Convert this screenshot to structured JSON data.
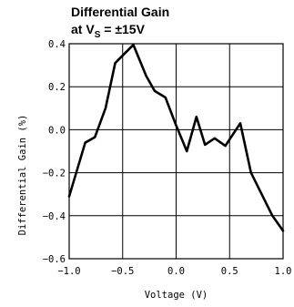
{
  "chart_data": {
    "type": "line",
    "title_line1": "Differential Gain",
    "title_line2_prefix": "at V",
    "title_line2_sub": "S",
    "title_line2_suffix": " = ±15V",
    "xlabel": "Voltage (V)",
    "ylabel": "Differential Gain (%)",
    "xlim": [
      -1.0,
      1.0
    ],
    "ylim": [
      -0.6,
      0.4
    ],
    "xticks": [
      -1.0,
      -0.5,
      0.0,
      0.5,
      1.0
    ],
    "xtick_labels": [
      "−1.0",
      "−0.5",
      "0.0",
      "0.5",
      "1.0"
    ],
    "yticks": [
      0.4,
      0.2,
      0.0,
      -0.2,
      -0.4,
      -0.6
    ],
    "ytick_labels": [
      "0.4",
      "0.2",
      "0.0",
      "−0.2",
      "−0.4",
      "−0.6"
    ],
    "grid": true,
    "line_color": "#000000",
    "grid_color": "#000000",
    "series": [
      {
        "x": [
          -1.0,
          -0.85,
          -0.76,
          -0.66,
          -0.57,
          -0.4,
          -0.28,
          -0.2,
          -0.1,
          0.0,
          0.1,
          0.19,
          0.27,
          0.36,
          0.46,
          0.6,
          0.7,
          0.8,
          0.9,
          1.0
        ],
        "y": [
          -0.31,
          -0.06,
          -0.035,
          0.1,
          0.31,
          0.395,
          0.25,
          0.18,
          0.15,
          0.02,
          -0.1,
          0.06,
          -0.07,
          -0.04,
          -0.075,
          0.03,
          -0.2,
          -0.3,
          -0.4,
          -0.47
        ]
      }
    ]
  }
}
